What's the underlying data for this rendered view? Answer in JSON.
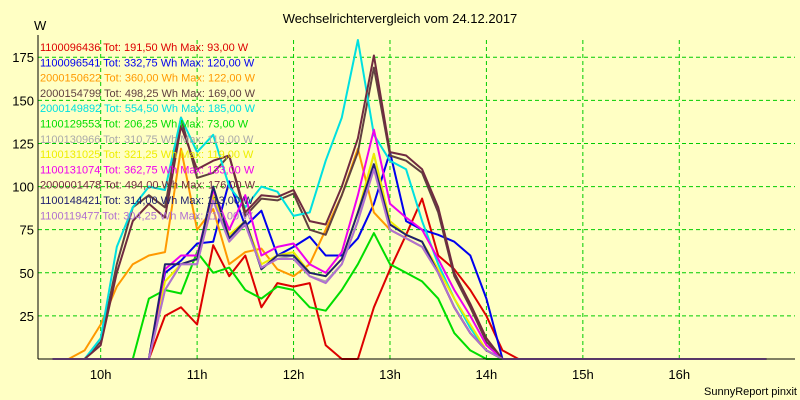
{
  "chart_data": {
    "type": "line",
    "title": "Wechselrichtervergleich vom 24.12.2017",
    "ylabel": "W",
    "xlabel": "",
    "credit": "SunnyReport pinxit",
    "grid": true,
    "legend_position": "top-left",
    "xlim": [
      9.35,
      17.2
    ],
    "ylim": [
      0,
      185
    ],
    "x_ticks": [
      10,
      11,
      12,
      13,
      14,
      15,
      16
    ],
    "x_tick_labels": [
      "10h",
      "11h",
      "12h",
      "13h",
      "14h",
      "15h",
      "16h"
    ],
    "y_ticks": [
      25,
      50,
      75,
      100,
      125,
      150,
      175
    ],
    "y_tick_labels": [
      "25",
      "50",
      "75",
      "100",
      "125",
      "150",
      "175"
    ],
    "x": [
      9.5,
      9.667,
      9.833,
      10,
      10.167,
      10.333,
      10.5,
      10.667,
      10.833,
      11,
      11.167,
      11.333,
      11.5,
      11.667,
      11.833,
      12,
      12.167,
      12.333,
      12.5,
      12.667,
      12.833,
      13,
      13.167,
      13.333,
      13.5,
      13.667,
      13.833,
      14,
      14.167,
      14.333,
      14.5,
      14.667,
      14.833,
      15,
      15.167,
      15.333,
      15.5,
      15.667,
      15.833,
      16,
      16.167,
      16.333,
      16.5,
      16.667,
      16.833
    ],
    "series": [
      {
        "name": "1100096436",
        "legend": "1100096436 Tot: 191,50 Wh Max: 93,00 W",
        "color": "#dd0000",
        "values": [
          0,
          0,
          0,
          0,
          0,
          0,
          0,
          25,
          30,
          20,
          66,
          48,
          60,
          30,
          44,
          42,
          44,
          8,
          0,
          0,
          30,
          52,
          72,
          93,
          60,
          52,
          40,
          25,
          5,
          0,
          0,
          0,
          0,
          0,
          0,
          0,
          0,
          0,
          0,
          0,
          0,
          0,
          0,
          0,
          0
        ]
      },
      {
        "name": "1100096541",
        "legend": "1100096541 Tot: 332,75 Wh Max: 120,00 W",
        "color": "#0000ee",
        "values": [
          0,
          0,
          0,
          0,
          0,
          0,
          0,
          50,
          57,
          67,
          68,
          103,
          77,
          86,
          60,
          65,
          71,
          60,
          60,
          70,
          90,
          120,
          80,
          75,
          72,
          68,
          60,
          35,
          0,
          0,
          0,
          0,
          0,
          0,
          0,
          0,
          0,
          0,
          0,
          0,
          0,
          0,
          0,
          0,
          0
        ]
      },
      {
        "name": "2000150622",
        "legend": "2000150622 Tot: 360,00 Wh Max: 122,00 W",
        "color": "#ff9900",
        "values": [
          0,
          0,
          5,
          20,
          42,
          55,
          60,
          62,
          122,
          75,
          87,
          55,
          62,
          64,
          52,
          48,
          55,
          75,
          95,
          122,
          85,
          75,
          70,
          65,
          50,
          30,
          15,
          5,
          0,
          0,
          0,
          0,
          0,
          0,
          0,
          0,
          0,
          0,
          0,
          0,
          0,
          0,
          0,
          0,
          0
        ]
      },
      {
        "name": "2000154799",
        "legend": "2000154799 Tot: 498,25 Wh Max: 169,00 W",
        "color": "#604040",
        "values": [
          0,
          0,
          0,
          10,
          55,
          88,
          95,
          88,
          140,
          105,
          108,
          118,
          83,
          93,
          92,
          96,
          75,
          72,
          95,
          120,
          169,
          118,
          115,
          108,
          85,
          48,
          30,
          10,
          0,
          0,
          0,
          0,
          0,
          0,
          0,
          0,
          0,
          0,
          0,
          0,
          0,
          0,
          0,
          0,
          0
        ]
      },
      {
        "name": "2000149892",
        "legend": "2000149892 Tot: 554,50 Wh Max: 185,00 W",
        "color": "#00e0e0",
        "values": [
          0,
          0,
          0,
          12,
          65,
          88,
          100,
          98,
          140,
          120,
          130,
          100,
          88,
          100,
          97,
          83,
          85,
          115,
          140,
          185,
          130,
          115,
          110,
          80,
          55,
          35,
          18,
          5,
          0,
          0,
          0,
          0,
          0,
          0,
          0,
          0,
          0,
          0,
          0,
          0,
          0,
          0,
          0,
          0,
          0
        ]
      },
      {
        "name": "1100129553",
        "legend": "1100129553 Tot: 206,25 Wh Max: 73,00 W",
        "color": "#00dd00",
        "values": [
          0,
          0,
          0,
          0,
          0,
          0,
          35,
          40,
          38,
          62,
          50,
          53,
          40,
          35,
          42,
          40,
          30,
          28,
          40,
          55,
          73,
          55,
          50,
          45,
          35,
          15,
          5,
          0,
          0,
          0,
          0,
          0,
          0,
          0,
          0,
          0,
          0,
          0,
          0,
          0,
          0,
          0,
          0,
          0,
          0
        ]
      },
      {
        "name": "1100130966",
        "legend": "1100130966 Tot: 310,75 Wh Max: 119,00 W",
        "color": "#aaaaaa",
        "values": [
          0,
          0,
          0,
          0,
          0,
          0,
          0,
          40,
          55,
          55,
          93,
          70,
          78,
          53,
          58,
          60,
          48,
          45,
          55,
          80,
          119,
          75,
          70,
          65,
          50,
          30,
          15,
          5,
          0,
          0,
          0,
          0,
          0,
          0,
          0,
          0,
          0,
          0,
          0,
          0,
          0,
          0,
          0,
          0,
          0
        ]
      },
      {
        "name": "1100131025",
        "legend": "1100131025 Tot: 321,25 Wh Max: 119,00 W",
        "color": "#eeee00",
        "values": [
          0,
          0,
          0,
          0,
          0,
          0,
          0,
          45,
          55,
          58,
          95,
          72,
          80,
          55,
          60,
          62,
          50,
          48,
          58,
          85,
          119,
          80,
          72,
          68,
          52,
          35,
          20,
          5,
          0,
          0,
          0,
          0,
          0,
          0,
          0,
          0,
          0,
          0,
          0,
          0,
          0,
          0,
          0,
          0,
          0
        ]
      },
      {
        "name": "1100131074",
        "legend": "1100131074 Tot: 362,75 Wh Max: 133,00 W",
        "color": "#ee00ee",
        "values": [
          0,
          0,
          0,
          0,
          0,
          0,
          0,
          52,
          60,
          60,
          98,
          75,
          95,
          60,
          65,
          67,
          55,
          50,
          62,
          95,
          133,
          90,
          82,
          75,
          58,
          40,
          25,
          8,
          0,
          0,
          0,
          0,
          0,
          0,
          0,
          0,
          0,
          0,
          0,
          0,
          0,
          0,
          0,
          0,
          0
        ]
      },
      {
        "name": "2000001478",
        "legend": "2000001478 Tot: 494,00 Wh Max: 176,00 W",
        "color": "#702a40",
        "values": [
          0,
          0,
          0,
          8,
          50,
          80,
          90,
          82,
          135,
          110,
          115,
          118,
          85,
          95,
          94,
          98,
          80,
          78,
          100,
          128,
          176,
          120,
          118,
          110,
          88,
          50,
          32,
          12,
          0,
          0,
          0,
          0,
          0,
          0,
          0,
          0,
          0,
          0,
          0,
          0,
          0,
          0,
          0,
          0,
          0
        ]
      },
      {
        "name": "1100148421",
        "legend": "1100148421 Tot: 314,00 Wh Max: 113,00 W",
        "color": "#202070",
        "values": [
          0,
          0,
          0,
          0,
          0,
          0,
          0,
          55,
          55,
          58,
          100,
          70,
          80,
          52,
          60,
          60,
          50,
          48,
          58,
          85,
          113,
          78,
          72,
          68,
          50,
          30,
          15,
          5,
          0,
          0,
          0,
          0,
          0,
          0,
          0,
          0,
          0,
          0,
          0,
          0,
          0,
          0,
          0,
          0,
          0
        ]
      },
      {
        "name": "1100119477",
        "legend": "1100119477 Tot: 304,25 Wh Max: 110,00 W",
        "color": "#b070d0",
        "values": [
          0,
          0,
          0,
          0,
          0,
          0,
          0,
          40,
          55,
          55,
          92,
          68,
          78,
          53,
          58,
          58,
          48,
          44,
          55,
          80,
          110,
          75,
          70,
          65,
          50,
          30,
          15,
          5,
          0,
          0,
          0,
          0,
          0,
          0,
          0,
          0,
          0,
          0,
          0,
          0,
          0,
          0,
          0,
          0,
          0
        ]
      }
    ]
  }
}
